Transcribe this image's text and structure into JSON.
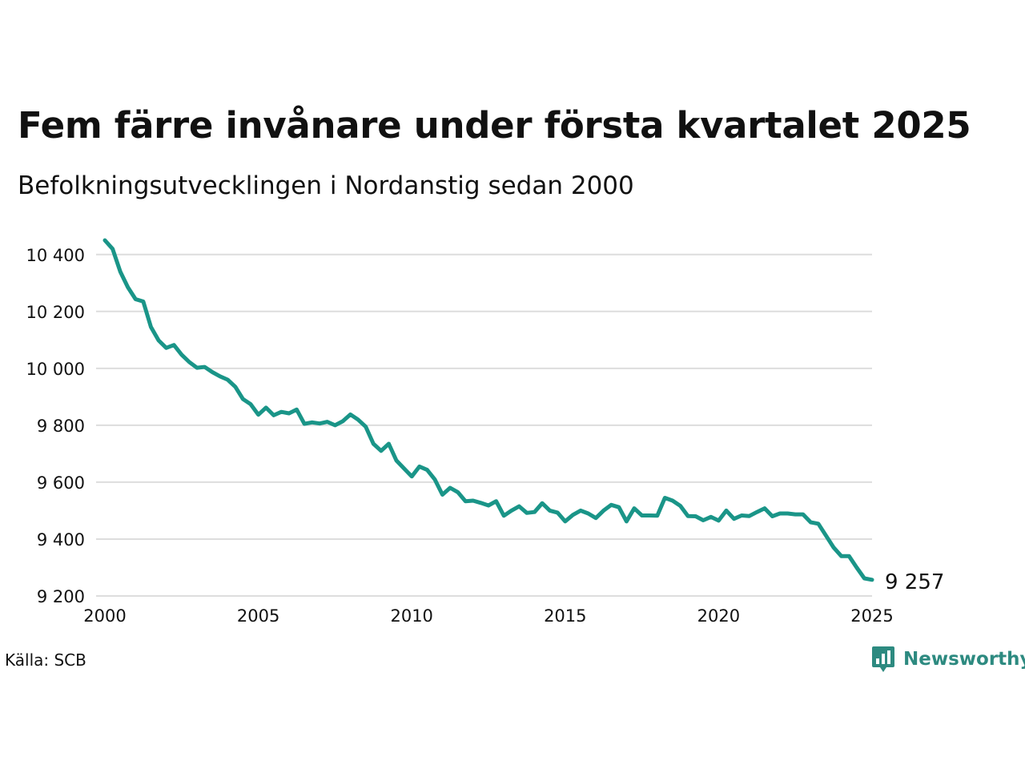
{
  "title": "Fem färre invånare under första kvartalet 2025",
  "subtitle": "Befolkningsutvecklingen i Nordanstig sedan 2000",
  "source": "Källa: SCB",
  "brand": {
    "name": "Newsworthy",
    "icon": "newsworthy-logo-icon",
    "color": "#2d8a80"
  },
  "colors": {
    "line": "#1a9588",
    "grid": "#dddddd"
  },
  "chart_data": {
    "type": "line",
    "ylim": [
      9200,
      10450
    ],
    "xlim": [
      2000,
      2025
    ],
    "yticks": [
      {
        "value": 9200,
        "label": "9 200"
      },
      {
        "value": 9400,
        "label": "9 400"
      },
      {
        "value": 9600,
        "label": "9 600"
      },
      {
        "value": 9800,
        "label": "9 800"
      },
      {
        "value": 10000,
        "label": "10 000"
      },
      {
        "value": 10200,
        "label": "10 200"
      },
      {
        "value": 10400,
        "label": "10 400"
      }
    ],
    "xticks": [
      {
        "value": 2000,
        "label": "2000"
      },
      {
        "value": 2005,
        "label": "2005"
      },
      {
        "value": 2010,
        "label": "2010"
      },
      {
        "value": 2015,
        "label": "2015"
      },
      {
        "value": 2020,
        "label": "2020"
      },
      {
        "value": 2025,
        "label": "2025"
      }
    ],
    "grid": "horizontal",
    "end_label": "9 257",
    "series": [
      {
        "x": [
          2000.0,
          2000.25,
          2000.5,
          2000.75,
          2001.0,
          2001.25,
          2001.5,
          2001.75,
          2002.0,
          2002.25,
          2002.5,
          2002.75,
          2003.0,
          2003.25,
          2003.5,
          2003.75,
          2004.0,
          2004.25,
          2004.5,
          2004.75,
          2005.0,
          2005.25,
          2005.5,
          2005.75,
          2006.0,
          2006.25,
          2006.5,
          2006.75,
          2007.0,
          2007.25,
          2007.5,
          2007.75,
          2008.0,
          2008.25,
          2008.5,
          2008.75,
          2009.0,
          2009.25,
          2009.5,
          2009.75,
          2010.0,
          2010.25,
          2010.5,
          2010.75,
          2011.0,
          2011.25,
          2011.5,
          2011.75,
          2012.0,
          2012.25,
          2012.5,
          2012.75,
          2013.0,
          2013.25,
          2013.5,
          2013.75,
          2014.0,
          2014.25,
          2014.5,
          2014.75,
          2015.0,
          2015.25,
          2015.5,
          2015.75,
          2016.0,
          2016.25,
          2016.5,
          2016.75,
          2017.0,
          2017.25,
          2017.5,
          2017.75,
          2018.0,
          2018.25,
          2018.5,
          2018.75,
          2019.0,
          2019.25,
          2019.5,
          2019.75,
          2020.0,
          2020.25,
          2020.5,
          2020.75,
          2021.0,
          2021.25,
          2021.5,
          2021.75,
          2022.0,
          2022.25,
          2022.5,
          2022.75,
          2023.0,
          2023.25,
          2023.5,
          2023.75,
          2024.0,
          2024.25,
          2024.5,
          2024.75,
          2025.0
        ],
        "values": [
          10450,
          10420,
          10340,
          10285,
          10243,
          10235,
          10145,
          10098,
          10072,
          10082,
          10048,
          10022,
          10002,
          10005,
          9987,
          9972,
          9960,
          9935,
          9892,
          9874,
          9837,
          9862,
          9835,
          9847,
          9842,
          9855,
          9805,
          9810,
          9806,
          9812,
          9800,
          9814,
          9838,
          9820,
          9795,
          9735,
          9710,
          9735,
          9676,
          9648,
          9620,
          9655,
          9643,
          9610,
          9556,
          9580,
          9565,
          9533,
          9535,
          9527,
          9518,
          9533,
          9482,
          9500,
          9515,
          9492,
          9495,
          9526,
          9500,
          9493,
          9462,
          9485,
          9500,
          9490,
          9474,
          9500,
          9520,
          9512,
          9462,
          9508,
          9483,
          9483,
          9482,
          9545,
          9535,
          9517,
          9481,
          9480,
          9466,
          9478,
          9465,
          9500,
          9471,
          9483,
          9481,
          9495,
          9508,
          9480,
          9490,
          9490,
          9487,
          9487,
          9459,
          9454,
          9412,
          9370,
          9340,
          9340,
          9300,
          9262,
          9257
        ]
      }
    ]
  }
}
